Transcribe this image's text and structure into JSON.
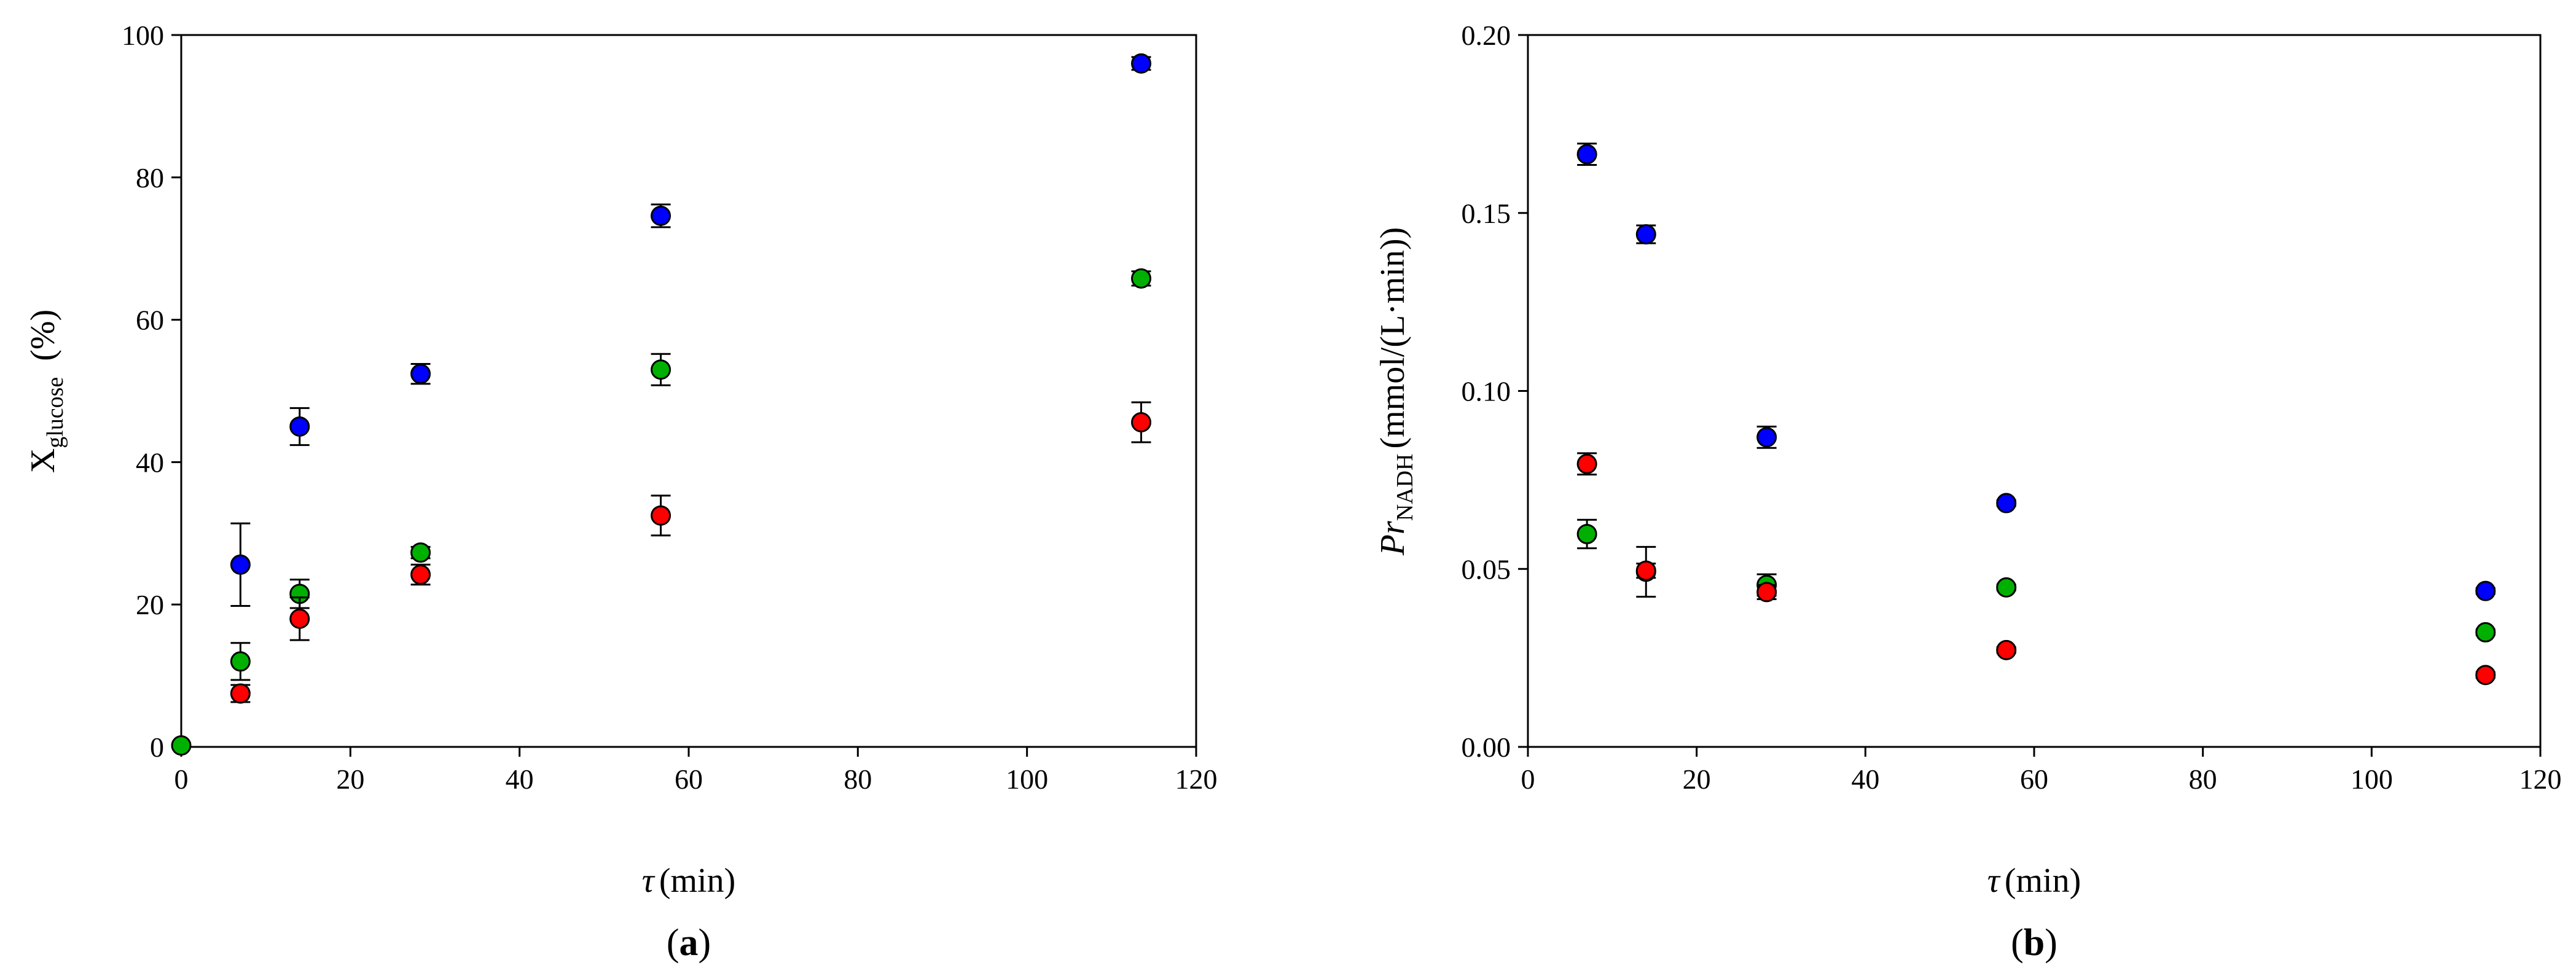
{
  "chart_data": [
    {
      "type": "scatter",
      "panel_label": "a",
      "xlabel": {
        "symbol": "τ",
        "unit": "(min)"
      },
      "ylabel": {
        "main": "X",
        "sub": "glucose",
        "unit": "(%)"
      },
      "xlim": [
        0,
        120
      ],
      "ylim": [
        0,
        100
      ],
      "xticks": [
        0,
        20,
        40,
        60,
        80,
        100,
        120
      ],
      "yticks": [
        0,
        20,
        40,
        60,
        80,
        100
      ],
      "ytick_labels": [
        "0",
        "20",
        "40",
        "60",
        "80",
        "100"
      ],
      "grid": false,
      "legend": "none",
      "series": [
        {
          "color": "#0000ff",
          "points": [
            {
              "x": 7,
              "y": 25.6,
              "err": 5.8
            },
            {
              "x": 14,
              "y": 45.0,
              "err": 2.6
            },
            {
              "x": 28.3,
              "y": 52.4,
              "err": 1.4
            },
            {
              "x": 56.7,
              "y": 74.6,
              "err": 1.6
            },
            {
              "x": 113.5,
              "y": 96.0,
              "err": 0.9
            }
          ]
        },
        {
          "color": "#00b000",
          "points": [
            {
              "x": 0,
              "y": 0.2,
              "err": 0
            },
            {
              "x": 7,
              "y": 12.0,
              "err": 2.6
            },
            {
              "x": 14,
              "y": 21.5,
              "err": 2.0
            },
            {
              "x": 28.3,
              "y": 27.3,
              "err": 0.8
            },
            {
              "x": 56.7,
              "y": 53.0,
              "err": 2.2
            },
            {
              "x": 113.5,
              "y": 65.8,
              "err": 1.0
            }
          ]
        },
        {
          "color": "#ff0000",
          "points": [
            {
              "x": 7,
              "y": 7.5,
              "err": 1.2
            },
            {
              "x": 14,
              "y": 18.0,
              "err": 3.0
            },
            {
              "x": 28.3,
              "y": 24.2,
              "err": 1.4
            },
            {
              "x": 56.7,
              "y": 32.5,
              "err": 2.8
            },
            {
              "x": 113.5,
              "y": 45.6,
              "err": 2.8
            }
          ]
        }
      ]
    },
    {
      "type": "scatter",
      "panel_label": "b",
      "xlabel": {
        "symbol": "τ",
        "unit": "(min)"
      },
      "ylabel": {
        "main": "Pr",
        "sub": "NADH",
        "unit": "(mmol/(L·min))"
      },
      "xlim": [
        0,
        120
      ],
      "ylim": [
        0,
        0.2
      ],
      "xticks": [
        0,
        20,
        40,
        60,
        80,
        100,
        120
      ],
      "yticks": [
        0,
        0.05,
        0.1,
        0.15,
        0.2
      ],
      "ytick_labels": [
        "0.00",
        "0.05",
        "0.10",
        "0.15",
        "0.20"
      ],
      "grid": false,
      "legend": "none",
      "series": [
        {
          "color": "#0000ff",
          "points": [
            {
              "x": 7,
              "y": 0.1665,
              "err": 0.003
            },
            {
              "x": 14,
              "y": 0.144,
              "err": 0.0025
            },
            {
              "x": 28.3,
              "y": 0.087,
              "err": 0.003
            },
            {
              "x": 56.7,
              "y": 0.0685,
              "err": 0.0008
            },
            {
              "x": 113.5,
              "y": 0.0438,
              "err": 0.0008
            }
          ]
        },
        {
          "color": "#00b000",
          "points": [
            {
              "x": 7,
              "y": 0.0598,
              "err": 0.004
            },
            {
              "x": 14,
              "y": 0.0492,
              "err": 0.007
            },
            {
              "x": 28.3,
              "y": 0.0455,
              "err": 0.003
            },
            {
              "x": 56.7,
              "y": 0.0448,
              "err": 0.0008
            },
            {
              "x": 113.5,
              "y": 0.0322,
              "err": 0.0008
            }
          ]
        },
        {
          "color": "#ff0000",
          "points": [
            {
              "x": 7,
              "y": 0.0795,
              "err": 0.003
            },
            {
              "x": 14,
              "y": 0.0495,
              "err": 0.002
            },
            {
              "x": 28.3,
              "y": 0.0435,
              "err": 0.002
            },
            {
              "x": 56.7,
              "y": 0.0272,
              "err": 0.0008
            },
            {
              "x": 113.5,
              "y": 0.0202,
              "err": 0.0008
            }
          ]
        }
      ]
    }
  ]
}
